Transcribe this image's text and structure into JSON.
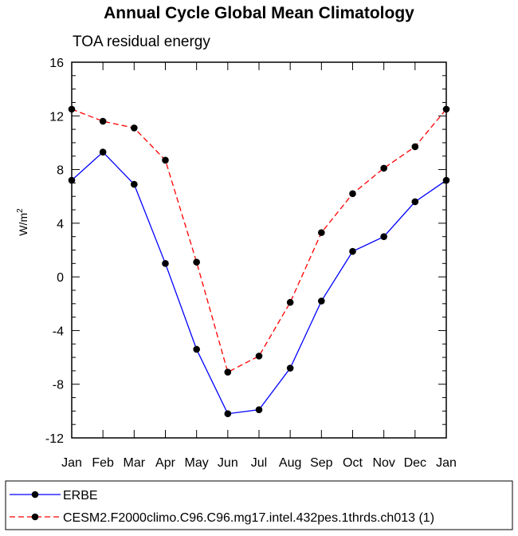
{
  "chart_data": {
    "type": "line",
    "title": "Annual Cycle Global Mean Climatology",
    "subtitle": "TOA residual energy",
    "ylabel_base": "W/m",
    "ylabel_sup": "2",
    "x": [
      "Jan",
      "Feb",
      "Mar",
      "Apr",
      "May",
      "Jun",
      "Jul",
      "Aug",
      "Sep",
      "Oct",
      "Nov",
      "Dec",
      "Jan"
    ],
    "ylim": [
      -12,
      16
    ],
    "yticks": [
      "-12",
      "-8",
      "-4",
      "0",
      "4",
      "8",
      "12",
      "16"
    ],
    "legend_position": "bottom",
    "series": [
      {
        "name": "ERBE",
        "color": "#0000ff",
        "dash": "solid",
        "values": [
          7.2,
          9.3,
          6.9,
          1.0,
          -5.4,
          -10.2,
          -9.9,
          -6.8,
          -1.8,
          1.9,
          3.0,
          5.6,
          7.2
        ]
      },
      {
        "name": "CESM2.F2000climo.C96.C96.mg17.intel.432pes.1thrds.ch013 (1)",
        "color": "#ff0000",
        "dash": "dashed",
        "values": [
          12.5,
          11.6,
          11.1,
          8.7,
          1.1,
          -7.1,
          -5.9,
          -1.9,
          3.3,
          6.2,
          8.1,
          9.7,
          12.5
        ]
      }
    ]
  }
}
